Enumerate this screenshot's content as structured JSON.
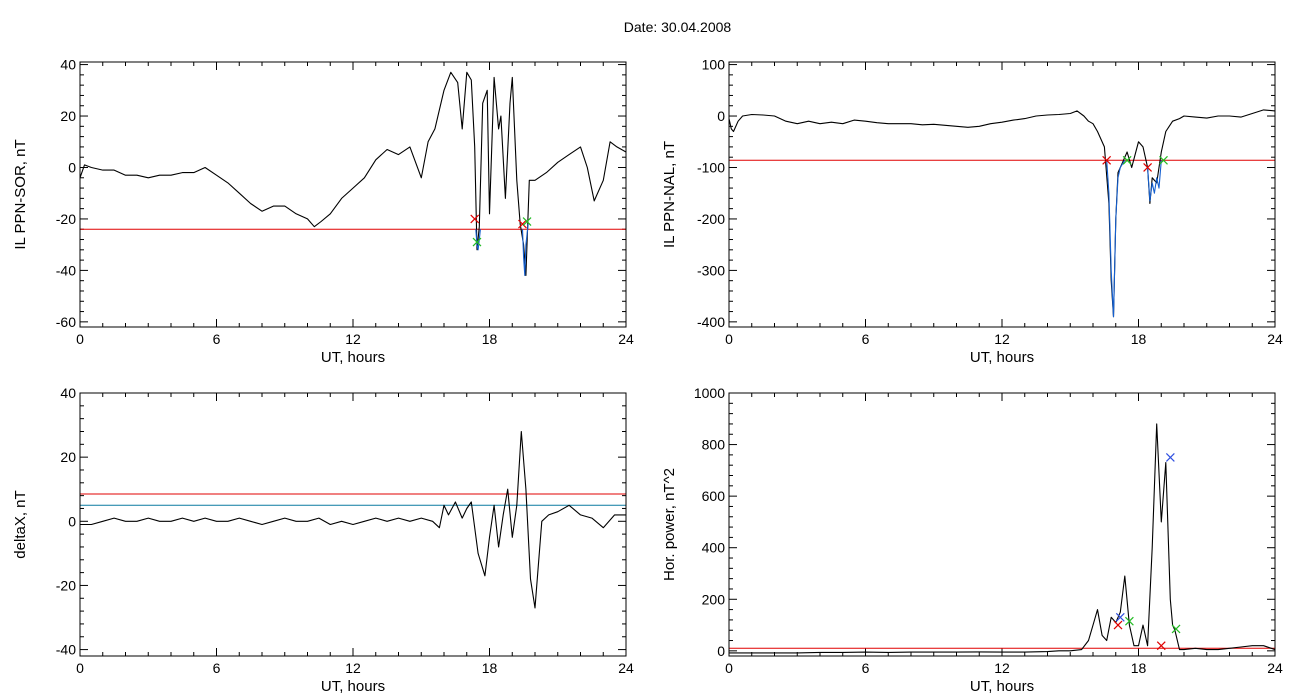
{
  "title": "Date:  30.04.2008",
  "colors": {
    "series": "#000000",
    "threshold": "#e00000",
    "threshold2": "#0a7aa0",
    "highlight": "#1560d0",
    "marker_red": "#e00000",
    "marker_green": "#22bb22",
    "marker_blue": "#3050e0"
  },
  "chart_data": [
    {
      "type": "line",
      "xlabel": "UT, hours",
      "ylabel": "IL PPN-SOR, nT",
      "xlim": [
        0,
        24
      ],
      "ylim": [
        -62,
        41
      ],
      "xticks": [
        0,
        6,
        12,
        18,
        24
      ],
      "yticks": [
        -60,
        -40,
        -20,
        0,
        20,
        40
      ],
      "thresholds": [
        {
          "y": -24,
          "color": "red"
        }
      ],
      "series": [
        {
          "color": "black",
          "x": [
            0,
            0.2,
            0.5,
            1,
            1.5,
            2,
            2.5,
            3,
            3.5,
            4,
            4.5,
            5,
            5.5,
            6,
            6.5,
            7,
            7.5,
            8,
            8.5,
            9,
            9.5,
            10,
            10.3,
            10.6,
            11,
            11.5,
            12,
            12.5,
            13,
            13.5,
            14,
            14.5,
            15,
            15.3,
            15.6,
            16,
            16.3,
            16.6,
            16.8,
            17,
            17.2,
            17.35,
            17.45,
            17.55,
            17.7,
            17.9,
            18,
            18.2,
            18.4,
            18.5,
            18.7,
            18.9,
            19,
            19.2,
            19.35,
            19.5,
            19.6,
            19.75,
            20,
            20.5,
            21,
            21.5,
            22,
            22.3,
            22.6,
            23,
            23.3,
            23.6,
            24
          ],
          "y": [
            -4,
            1,
            0,
            -1,
            -1,
            -3,
            -3,
            -4,
            -3,
            -3,
            -2,
            -2,
            0,
            -3,
            -6,
            -10,
            -14,
            -17,
            -15,
            -15,
            -18,
            -20,
            -23,
            -21,
            -18,
            -12,
            -8,
            -4,
            3,
            7,
            5,
            8,
            -4,
            10,
            15,
            30,
            37,
            33,
            15,
            37,
            34,
            8,
            -32,
            -23,
            25,
            30,
            -18,
            35,
            15,
            20,
            -12,
            25,
            35,
            -5,
            -22,
            -30,
            -42,
            -5,
            -5,
            -2,
            2,
            5,
            8,
            0,
            -13,
            -5,
            10,
            8,
            6
          ]
        },
        {
          "color": "blue",
          "x": [
            17.4,
            17.45,
            17.5,
            17.55,
            17.6
          ],
          "y": [
            -24,
            -30,
            -32,
            -28,
            -24
          ]
        },
        {
          "color": "blue",
          "x": [
            19.45,
            19.5,
            19.55,
            19.6,
            19.7
          ],
          "y": [
            -24,
            -35,
            -42,
            -30,
            -22
          ]
        }
      ],
      "markers": [
        {
          "x": 17.35,
          "y": -20,
          "color": "red"
        },
        {
          "x": 17.45,
          "y": -29,
          "color": "green"
        },
        {
          "x": 19.45,
          "y": -22,
          "color": "red"
        },
        {
          "x": 19.65,
          "y": -21,
          "color": "green"
        }
      ]
    },
    {
      "type": "line",
      "xlabel": "UT, hours",
      "ylabel": "IL PPN-NAL, nT",
      "xlim": [
        0,
        24
      ],
      "ylim": [
        -410,
        105
      ],
      "xticks": [
        0,
        6,
        12,
        18,
        24
      ],
      "yticks": [
        -400,
        -300,
        -200,
        -100,
        0,
        100
      ],
      "thresholds": [
        {
          "y": -86,
          "color": "red"
        }
      ],
      "series": [
        {
          "color": "black",
          "x": [
            0,
            0.1,
            0.2,
            0.4,
            0.6,
            1,
            1.5,
            2,
            2.5,
            3,
            3.5,
            4,
            4.5,
            5,
            5.5,
            6,
            6.5,
            7,
            7.5,
            8,
            8.5,
            9,
            9.5,
            10,
            10.5,
            11,
            11.5,
            12,
            12.5,
            13,
            13.5,
            14,
            14.5,
            15,
            15.3,
            15.6,
            15.8,
            16,
            16.2,
            16.5,
            16.7,
            16.8,
            16.9,
            17,
            17.1,
            17.3,
            17.5,
            17.7,
            18,
            18.2,
            18.4,
            18.5,
            18.6,
            18.8,
            19,
            19.2,
            19.5,
            19.8,
            20,
            20.5,
            21,
            21.5,
            22,
            22.5,
            23,
            23.5,
            24
          ],
          "y": [
            -5,
            -25,
            -30,
            -10,
            0,
            3,
            2,
            0,
            -10,
            -15,
            -10,
            -15,
            -12,
            -15,
            -8,
            -10,
            -13,
            -15,
            -15,
            -15,
            -17,
            -16,
            -18,
            -20,
            -22,
            -20,
            -15,
            -12,
            -8,
            -5,
            0,
            2,
            3,
            5,
            10,
            0,
            -10,
            -15,
            -30,
            -60,
            -170,
            -320,
            -390,
            -200,
            -110,
            -90,
            -70,
            -100,
            -50,
            -60,
            -100,
            -170,
            -120,
            -130,
            -70,
            -30,
            -10,
            -5,
            0,
            -2,
            -4,
            0,
            0,
            -2,
            5,
            12,
            10
          ]
        },
        {
          "color": "blue",
          "x": [
            16.6,
            16.7,
            16.8,
            16.9,
            16.95,
            17,
            17.1,
            17.2,
            17.4
          ],
          "y": [
            -86,
            -150,
            -300,
            -390,
            -300,
            -200,
            -120,
            -100,
            -86
          ]
        },
        {
          "color": "blue",
          "x": [
            18.4,
            18.5,
            18.6,
            18.7,
            18.8,
            18.9,
            19
          ],
          "y": [
            -100,
            -165,
            -130,
            -150,
            -120,
            -140,
            -86
          ]
        }
      ],
      "markers": [
        {
          "x": 16.6,
          "y": -86,
          "color": "red"
        },
        {
          "x": 17.5,
          "y": -86,
          "color": "green"
        },
        {
          "x": 18.4,
          "y": -100,
          "color": "red"
        },
        {
          "x": 19.1,
          "y": -86,
          "color": "green"
        }
      ]
    },
    {
      "type": "line",
      "xlabel": "UT, hours",
      "ylabel": "deltaX, nT",
      "xlim": [
        0,
        24
      ],
      "ylim": [
        -42,
        40
      ],
      "xticks": [
        0,
        6,
        12,
        18,
        24
      ],
      "yticks": [
        -40,
        -20,
        0,
        20,
        40
      ],
      "thresholds": [
        {
          "y": 8.5,
          "color": "red"
        },
        {
          "y": 5,
          "color": "teal"
        }
      ],
      "series": [
        {
          "color": "black",
          "x": [
            0,
            0.5,
            1,
            1.5,
            2,
            2.5,
            3,
            3.5,
            4,
            4.5,
            5,
            5.5,
            6,
            6.5,
            7,
            7.5,
            8,
            8.5,
            9,
            9.5,
            10,
            10.5,
            11,
            11.5,
            12,
            12.5,
            13,
            13.5,
            14,
            14.5,
            15,
            15.5,
            15.8,
            16,
            16.2,
            16.5,
            16.8,
            17,
            17.2,
            17.5,
            17.8,
            18,
            18.2,
            18.4,
            18.6,
            18.8,
            19,
            19.2,
            19.4,
            19.6,
            19.8,
            20,
            20.3,
            20.6,
            21,
            21.5,
            22,
            22.5,
            23,
            23.5,
            24
          ],
          "y": [
            -1,
            -1,
            0,
            1,
            0,
            0,
            1,
            0,
            0,
            1,
            0,
            1,
            0,
            0,
            1,
            0,
            -1,
            0,
            1,
            0,
            0,
            1,
            -1,
            0,
            -1,
            0,
            1,
            0,
            1,
            0,
            1,
            0,
            -2,
            5,
            2,
            6,
            1,
            4,
            6,
            -10,
            -17,
            -5,
            5,
            -8,
            2,
            10,
            -5,
            5,
            28,
            10,
            -18,
            -27,
            0,
            2,
            3,
            5,
            2,
            1,
            -2,
            2,
            2
          ]
        }
      ],
      "markers": []
    },
    {
      "type": "line",
      "xlabel": "UT, hours",
      "ylabel": "Hor. power, nT^2",
      "xlim": [
        0,
        24
      ],
      "ylim": [
        -20,
        1000
      ],
      "xticks": [
        0,
        6,
        12,
        18,
        24
      ],
      "yticks": [
        0,
        200,
        400,
        600,
        800,
        1000
      ],
      "thresholds": [
        {
          "y": 10,
          "color": "red"
        }
      ],
      "series": [
        {
          "color": "black",
          "x": [
            0,
            1,
            2,
            3,
            4,
            5,
            6,
            7,
            8,
            9,
            10,
            11,
            12,
            13,
            14,
            14.5,
            15,
            15.5,
            15.8,
            16,
            16.2,
            16.4,
            16.6,
            16.8,
            17,
            17.2,
            17.4,
            17.6,
            17.8,
            18,
            18.2,
            18.4,
            18.6,
            18.8,
            19,
            19.2,
            19.4,
            19.5,
            19.6,
            19.8,
            20,
            20.5,
            21,
            21.5,
            22,
            22.5,
            23,
            23.5,
            24
          ],
          "y": [
            -8,
            -8,
            -8,
            -8,
            -6,
            -6,
            -5,
            -6,
            -5,
            -5,
            -5,
            -4,
            -5,
            -5,
            -3,
            0,
            0,
            5,
            40,
            100,
            160,
            60,
            40,
            130,
            110,
            150,
            290,
            100,
            20,
            20,
            100,
            20,
            400,
            880,
            500,
            730,
            200,
            100,
            80,
            5,
            5,
            10,
            5,
            5,
            10,
            15,
            20,
            20,
            5
          ]
        }
      ],
      "markers": [
        {
          "x": 17.2,
          "y": 130,
          "color": "blue"
        },
        {
          "x": 17.1,
          "y": 100,
          "color": "red"
        },
        {
          "x": 17.6,
          "y": 115,
          "color": "green"
        },
        {
          "x": 19.4,
          "y": 750,
          "color": "blue"
        },
        {
          "x": 19.0,
          "y": 20,
          "color": "red"
        },
        {
          "x": 19.65,
          "y": 85,
          "color": "green"
        }
      ]
    }
  ]
}
